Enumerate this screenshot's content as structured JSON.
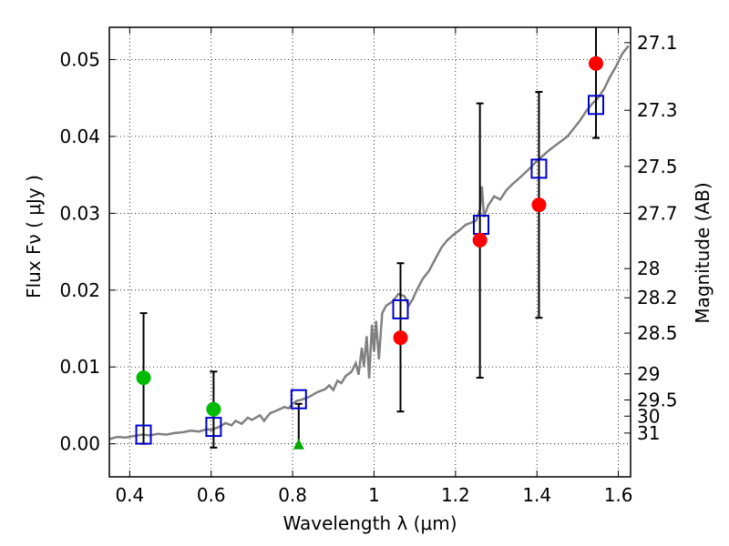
{
  "chart_data": {
    "type": "scatter",
    "title": "",
    "xlabel": "Wavelength  λ (μm)",
    "ylabel": "Flux  Fν  ( μJy )",
    "y2label": "Magnitude (AB)",
    "xlim": [
      0.35,
      1.63
    ],
    "ylim": [
      -0.0043,
      0.0542
    ],
    "x_ticks": [
      0.4,
      0.6,
      0.8,
      1.0,
      1.2,
      1.4,
      1.6
    ],
    "x_tick_labels": [
      "0.4",
      "0.6",
      "0.8",
      "1",
      "1.2",
      "1.4",
      "1.6"
    ],
    "y_ticks": [
      0.0,
      0.01,
      0.02,
      0.03,
      0.04,
      0.05
    ],
    "y_tick_labels": [
      "0.00",
      "0.01",
      "0.02",
      "0.03",
      "0.04",
      "0.05"
    ],
    "y2_ticks": [
      {
        "label": "27.1",
        "flux": 0.0522
      },
      {
        "label": "27.3",
        "flux": 0.0434
      },
      {
        "label": "27.5",
        "flux": 0.0361
      },
      {
        "label": "27.7",
        "flux": 0.03
      },
      {
        "label": "28",
        "flux": 0.0228
      },
      {
        "label": "28.2",
        "flux": 0.019
      },
      {
        "label": "28.5",
        "flux": 0.0144
      },
      {
        "label": "29",
        "flux": 0.0091
      },
      {
        "label": "29.5",
        "flux": 0.0057
      },
      {
        "label": "30",
        "flux": 0.0036
      },
      {
        "label": "31",
        "flux": 0.0014
      }
    ],
    "grid": true,
    "colors": {
      "sed_line": "#808080",
      "model_square": "#0000cc",
      "detection_circle": "#ff0000",
      "optical_circle": "#00bb00",
      "upper_limit_triangle": "#00aa00",
      "errorbar": "#000000"
    },
    "series": [
      {
        "type": "line",
        "points": [
          [
            0.35,
            0.0006
          ],
          [
            0.37,
            0.0009
          ],
          [
            0.39,
            0.0008
          ],
          [
            0.41,
            0.001
          ],
          [
            0.43,
            0.0012
          ],
          [
            0.45,
            0.0011
          ],
          [
            0.47,
            0.0013
          ],
          [
            0.49,
            0.0012
          ],
          [
            0.51,
            0.0014
          ],
          [
            0.53,
            0.0015
          ],
          [
            0.55,
            0.0017
          ],
          [
            0.57,
            0.0016
          ],
          [
            0.59,
            0.0019
          ],
          [
            0.6,
            0.0018
          ],
          [
            0.62,
            0.0022
          ],
          [
            0.635,
            0.0027
          ],
          [
            0.65,
            0.0024
          ],
          [
            0.66,
            0.003
          ],
          [
            0.675,
            0.0026
          ],
          [
            0.69,
            0.0034
          ],
          [
            0.7,
            0.0031
          ],
          [
            0.72,
            0.0037
          ],
          [
            0.73,
            0.003
          ],
          [
            0.745,
            0.004
          ],
          [
            0.76,
            0.0043
          ],
          [
            0.78,
            0.0048
          ],
          [
            0.79,
            0.0046
          ],
          [
            0.8,
            0.0052
          ],
          [
            0.81,
            0.0056
          ],
          [
            0.82,
            0.0057
          ],
          [
            0.84,
            0.0061
          ],
          [
            0.86,
            0.0067
          ],
          [
            0.88,
            0.0071
          ],
          [
            0.89,
            0.0076
          ],
          [
            0.9,
            0.007
          ],
          [
            0.91,
            0.0082
          ],
          [
            0.92,
            0.0079
          ],
          [
            0.93,
            0.0088
          ],
          [
            0.945,
            0.0094
          ],
          [
            0.955,
            0.0105
          ],
          [
            0.962,
            0.009
          ],
          [
            0.97,
            0.0125
          ],
          [
            0.975,
            0.01
          ],
          [
            0.982,
            0.014
          ],
          [
            0.988,
            0.0085
          ],
          [
            0.995,
            0.0155
          ],
          [
            1.0,
            0.012
          ],
          [
            1.005,
            0.016
          ],
          [
            1.012,
            0.011
          ],
          [
            1.02,
            0.017
          ],
          [
            1.03,
            0.018
          ],
          [
            1.045,
            0.0185
          ],
          [
            1.06,
            0.0195
          ],
          [
            1.075,
            0.0192
          ],
          [
            1.085,
            0.018
          ],
          [
            1.095,
            0.0188
          ],
          [
            1.105,
            0.02
          ],
          [
            1.12,
            0.0215
          ],
          [
            1.135,
            0.0225
          ],
          [
            1.15,
            0.024
          ],
          [
            1.165,
            0.0255
          ],
          [
            1.18,
            0.0265
          ],
          [
            1.195,
            0.0272
          ],
          [
            1.21,
            0.0278
          ],
          [
            1.225,
            0.0285
          ],
          [
            1.24,
            0.0288
          ],
          [
            1.25,
            0.029
          ],
          [
            1.26,
            0.0305
          ],
          [
            1.265,
            0.0335
          ],
          [
            1.27,
            0.0295
          ],
          [
            1.28,
            0.031
          ],
          [
            1.295,
            0.0322
          ],
          [
            1.31,
            0.0318
          ],
          [
            1.325,
            0.033
          ],
          [
            1.34,
            0.0338
          ],
          [
            1.355,
            0.0345
          ],
          [
            1.37,
            0.0352
          ],
          [
            1.385,
            0.036
          ],
          [
            1.4,
            0.0368
          ],
          [
            1.415,
            0.0375
          ],
          [
            1.43,
            0.0382
          ],
          [
            1.445,
            0.0388
          ],
          [
            1.46,
            0.0394
          ],
          [
            1.475,
            0.04
          ],
          [
            1.49,
            0.041
          ],
          [
            1.505,
            0.042
          ],
          [
            1.52,
            0.0432
          ],
          [
            1.535,
            0.0442
          ],
          [
            1.55,
            0.045
          ],
          [
            1.565,
            0.0462
          ],
          [
            1.58,
            0.0478
          ],
          [
            1.595,
            0.0492
          ],
          [
            1.61,
            0.0508
          ],
          [
            1.625,
            0.0518
          ]
        ]
      },
      {
        "type": "errorbar_circle",
        "points": [
          {
            "x": 0.434,
            "y": 0.0086,
            "lo": 0.0,
            "hi": 0.017,
            "color": "optical_circle"
          },
          {
            "x": 0.606,
            "y": 0.0045,
            "lo": -0.0005,
            "hi": 0.0094,
            "color": "optical_circle"
          },
          {
            "x": 1.065,
            "y": 0.0138,
            "lo": 0.0042,
            "hi": 0.0235,
            "color": "detection_circle"
          },
          {
            "x": 1.26,
            "y": 0.0265,
            "lo": 0.0086,
            "hi": 0.0443,
            "color": "detection_circle"
          },
          {
            "x": 1.405,
            "y": 0.0311,
            "lo": 0.0164,
            "hi": 0.0458,
            "color": "detection_circle"
          },
          {
            "x": 1.545,
            "y": 0.0495,
            "lo": 0.0398,
            "hi": 0.0542,
            "color": "detection_circle"
          }
        ]
      },
      {
        "type": "upper_limit",
        "points": [
          {
            "x": 0.815,
            "y": 0.0,
            "hi": 0.0052
          }
        ]
      },
      {
        "type": "model_squares",
        "points": [
          [
            0.434,
            0.0012
          ],
          [
            0.606,
            0.0022
          ],
          [
            0.815,
            0.0058
          ],
          [
            1.065,
            0.0175
          ],
          [
            1.263,
            0.0285
          ],
          [
            1.405,
            0.0358
          ],
          [
            1.545,
            0.0441
          ]
        ]
      }
    ]
  }
}
